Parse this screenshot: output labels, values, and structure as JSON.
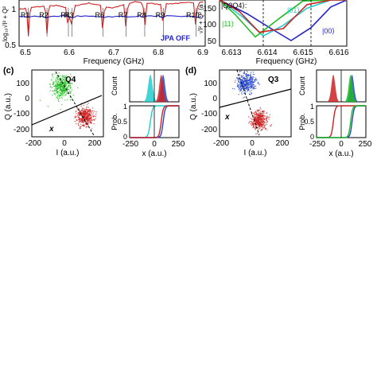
{
  "panel_a": {
    "ylabel": "log₁₀√I² + Q²",
    "xlabel": "Frequency (GHz)",
    "xticks": [
      "6.5",
      "6.6",
      "6.7",
      "6.8",
      "6.9"
    ],
    "yticks": [
      "1",
      "0.5"
    ],
    "resonators": [
      "R1",
      "R2",
      "R3",
      "R4",
      "R6",
      "R7",
      "R8",
      "R9",
      "R10"
    ],
    "legend": "JPA OFF",
    "colors": {
      "on": "#cc2222",
      "off": "#2222cc",
      "ref": "#444444"
    }
  },
  "panel_b": {
    "ylabel": "√I² + Q² (a",
    "xlabel": "Frequency (GHz)",
    "xticks": [
      "6.613",
      "6.614",
      "6.615",
      "6.616"
    ],
    "yticks": [
      "150",
      "100",
      "50"
    ],
    "state_label": "|Q3Q4⟩:",
    "states": [
      "|01⟩",
      "|11⟩",
      "|00⟩"
    ],
    "colors": {
      "s01": "#22cccc",
      "s11": "#22bb22",
      "s00": "#2222cc",
      "s10": "#cc2222"
    }
  },
  "panel_c": {
    "label": "(c)",
    "qubit": "Q4",
    "iq_xlabel": "I (a.u.)",
    "iq_ylabel": "Q (a.u.)",
    "iq_xticks": [
      "-200",
      "0",
      "200"
    ],
    "iq_yticks": [
      "100",
      "0",
      "-100",
      "-200"
    ],
    "axis_label": "x",
    "count_label": "Count",
    "prob_label": "Prob.",
    "hist_xlabel": "x (a.u.)",
    "hist_xticks": [
      "-250",
      "0",
      "250"
    ],
    "prob_ticks": [
      "1",
      "0.5",
      "0"
    ]
  },
  "panel_d": {
    "label": "(d)",
    "qubit": "Q3",
    "iq_xlabel": "I (a.u.)",
    "iq_ylabel": "Q (a.u.)",
    "iq_xticks": [
      "-200",
      "0",
      "200"
    ],
    "iq_yticks": [
      "100",
      "0",
      "-100",
      "-200"
    ],
    "axis_label": "x",
    "count_label": "Count",
    "prob_label": "Prob.",
    "hist_xlabel": "x (a.u.)",
    "hist_xticks": [
      "-250",
      "0",
      "250"
    ],
    "prob_ticks": [
      "1",
      "0.5",
      "0"
    ]
  },
  "chart_data": [
    {
      "type": "line",
      "panel": "a",
      "xlabel": "Frequency (GHz)",
      "ylabel": "log₁₀√I² + Q²",
      "xlim": [
        6.5,
        6.9
      ],
      "ylim": [
        0.5,
        1.25
      ],
      "series": [
        {
          "name": "",
          "x": [
            6.5,
            6.54,
            6.58,
            6.6,
            6.65,
            6.7,
            6.75,
            6.8,
            6.85,
            6.9
          ],
          "y": [
            1.1,
            1.14,
            1.16,
            1.13,
            1.2,
            1.12,
            1.22,
            1.18,
            1.2,
            1.22
          ]
        },
        {
          "name": "JPA OFF",
          "x": [
            6.5,
            6.6,
            6.7,
            6.8,
            6.9
          ],
          "y": [
            0.98,
            0.99,
            0.98,
            0.99,
            0.98
          ]
        }
      ],
      "resonances": [
        {
          "label": "R1",
          "f": 6.52
        },
        {
          "label": "R2",
          "f": 6.56
        },
        {
          "label": "R4",
          "f": 6.606
        },
        {
          "label": "R3",
          "f": 6.614
        },
        {
          "label": "R6",
          "f": 6.68
        },
        {
          "label": "R7",
          "f": 6.73
        },
        {
          "label": "R8",
          "f": 6.77
        },
        {
          "label": "R9",
          "f": 6.81
        },
        {
          "label": "R10",
          "f": 6.88
        }
      ]
    },
    {
      "type": "line",
      "panel": "b",
      "xlabel": "Frequency (GHz)",
      "xlim": [
        6.613,
        6.6162
      ],
      "ylim": [
        50,
        150
      ],
      "series": [
        {
          "name": "|00⟩",
          "x": [
            6.613,
            6.6137,
            6.6143,
            6.6148,
            6.6153,
            6.6158,
            6.6162
          ],
          "y": [
            150,
            120,
            88,
            62,
            90,
            135,
            150
          ]
        },
        {
          "name": "|01⟩",
          "x": [
            6.613,
            6.6136,
            6.6141,
            6.6146,
            6.6152,
            6.6158,
            6.6162
          ],
          "y": [
            150,
            112,
            72,
            95,
            132,
            150,
            150
          ]
        },
        {
          "name": "|11⟩",
          "x": [
            6.613,
            6.6134,
            6.6139,
            6.6145,
            6.6151,
            6.6158,
            6.6162
          ],
          "y": [
            150,
            118,
            70,
            110,
            148,
            150,
            150
          ]
        },
        {
          "name": "",
          "x": [
            6.613,
            6.6135,
            6.614,
            6.6146,
            6.6152,
            6.6158,
            6.6162
          ],
          "y": [
            150,
            125,
            80,
            88,
            140,
            150,
            150
          ]
        }
      ],
      "dashed_lines_x": [
        6.6141,
        6.6153
      ]
    },
    {
      "type": "scatter",
      "panel": "c",
      "xlabel": "I (a.u.)",
      "ylabel": "Q (a.u.)",
      "xlim": [
        -200,
        230
      ],
      "ylim": [
        -230,
        130
      ],
      "clusters": [
        {
          "state": "ground",
          "color": "#22bb22",
          "center": [
            -20,
            40
          ],
          "spread": 55
        },
        {
          "state": "excited",
          "color": "#cc2222",
          "center": [
            120,
            -120
          ],
          "spread": 45
        }
      ]
    },
    {
      "type": "scatter",
      "panel": "d",
      "xlabel": "I (a.u.)",
      "ylabel": "Q (a.u.)",
      "xlim": [
        -200,
        230
      ],
      "ylim": [
        -230,
        130
      ],
      "clusters": [
        {
          "state": "ground",
          "color": "#2244cc",
          "center": [
            -40,
            60
          ],
          "spread": 50
        },
        {
          "state": "excited",
          "color": "#cc2222",
          "center": [
            40,
            -140
          ],
          "spread": 45
        }
      ]
    },
    {
      "type": "area",
      "panel": "c-hist",
      "xlabel": "x (a.u.)",
      "ylabel": "Count",
      "xlim": [
        -250,
        250
      ],
      "series": [
        {
          "name": "",
          "color": "#22cccc",
          "center": -40,
          "width": 45
        },
        {
          "name": "",
          "color": "#2244cc",
          "center": 90,
          "width": 40
        },
        {
          "name": "",
          "color": "#cc2222",
          "center": 70,
          "width": 40
        }
      ]
    },
    {
      "type": "area",
      "panel": "d-hist",
      "xlabel": "x (a.u.)",
      "ylabel": "Count",
      "xlim": [
        -250,
        250
      ],
      "series": [
        {
          "name": "",
          "color": "#cc2222",
          "center": -80,
          "width": 40
        },
        {
          "name": "",
          "color": "#2244cc",
          "center": 110,
          "width": 40
        },
        {
          "name": "",
          "color": "#22bb22",
          "center": 95,
          "width": 40
        }
      ]
    }
  ]
}
